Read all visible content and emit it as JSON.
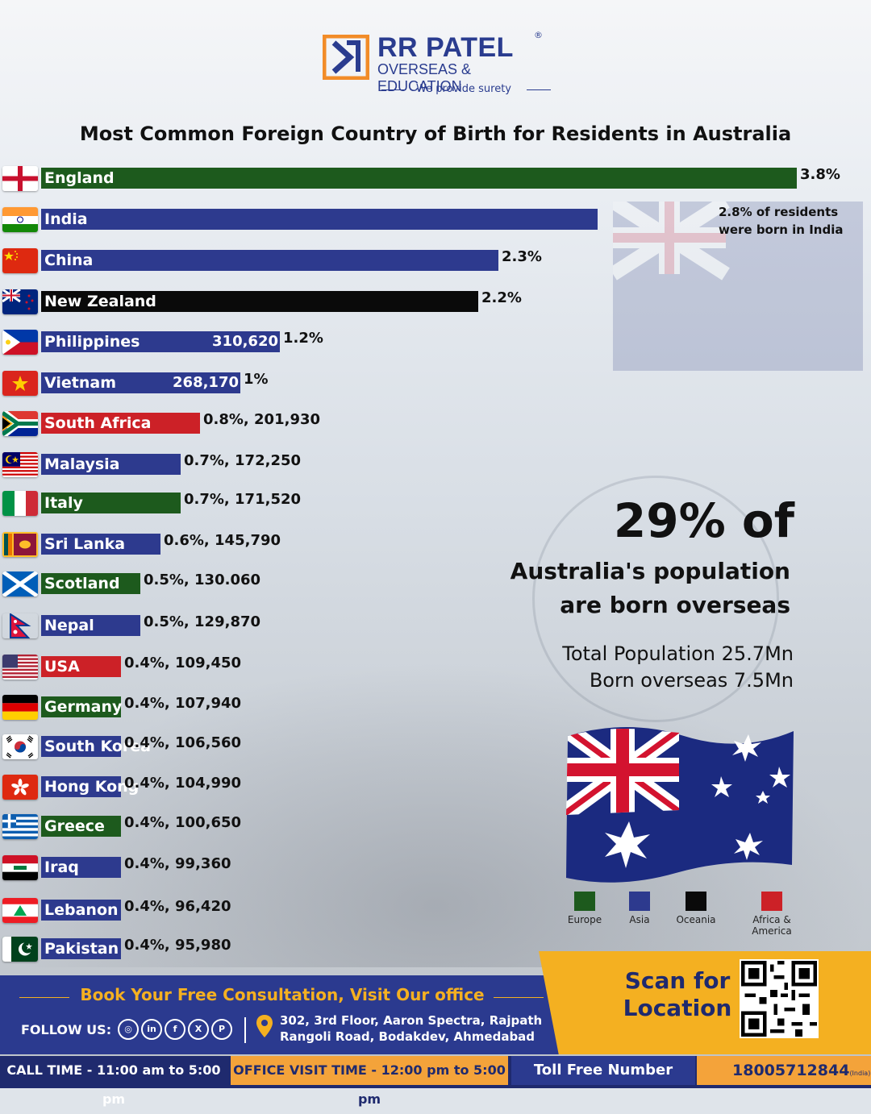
{
  "brand": {
    "name": "RR PATEL",
    "reg": "®",
    "subtitle": "OVERSEAS & EDUCATION",
    "tagline": "We provide surety"
  },
  "chart_data": {
    "type": "bar",
    "orientation": "horizontal",
    "title": "Most Common Foreign Country of Birth for Residents in Australia",
    "xlabel": "",
    "ylabel": "",
    "unit": "% of residents",
    "xlim": [
      0,
      3.8
    ],
    "categories": [
      "England",
      "India",
      "China",
      "New Zealand",
      "Philippines",
      "Vietnam",
      "South Africa",
      "Malaysia",
      "Italy",
      "Sri Lanka",
      "Scotland",
      "Nepal",
      "USA",
      "Germany",
      "South Korea",
      "Hong Kong",
      "Greece",
      "Iraq",
      "Lebanon",
      "Pakistan"
    ],
    "values": [
      3.8,
      2.8,
      2.3,
      2.2,
      1.2,
      1.0,
      0.8,
      0.7,
      0.7,
      0.6,
      0.5,
      0.5,
      0.4,
      0.4,
      0.4,
      0.4,
      0.4,
      0.4,
      0.4,
      0.4
    ],
    "regions": [
      "Europe",
      "Asia",
      "Asia",
      "Oceania",
      "Asia",
      "Asia",
      "Africa & America",
      "Asia",
      "Europe",
      "Asia",
      "Europe",
      "Asia",
      "Africa & America",
      "Europe",
      "Asia",
      "Asia",
      "Europe",
      "Asia",
      "Asia",
      "Asia"
    ],
    "value_labels": [
      "3.8%",
      "",
      "2.3%",
      "2.2%",
      "1.2%",
      "1%",
      "0.8%, 201,930",
      "0.7%, 172,250",
      "0.7%, 171,520",
      "0.6%, 145,790",
      "0.5%, 130.060",
      "0.5%, 129,870",
      "0.4%, 109,450",
      "0.4%, 107,940",
      "0.4%, 106,560",
      "0.4%, 104,990",
      "0.4%, 100,650",
      "0.4%, 99,360",
      "0.4%, 96,420",
      "0.4%, 95,980"
    ],
    "inside_labels": [
      "",
      "",
      "",
      "",
      "310,620",
      "268,170",
      "",
      "",
      "",
      "",
      "",
      "",
      "",
      "",
      "",
      "",
      "",
      "",
      "",
      ""
    ],
    "annotation": "2.8% of residents were born in India",
    "region_colors": {
      "Europe": "#1d5a1d",
      "Asia": "#2d3a8e",
      "Oceania": "#0a0a0a",
      "Africa & America": "#cc2127"
    },
    "legend": [
      "Europe",
      "Asia",
      "Oceania",
      "Africa & America"
    ],
    "legend_placement": "bottom-right",
    "grid": false
  },
  "stats": {
    "headline": "29% of",
    "line1": "Australia's population",
    "line2": "are born overseas",
    "total": "Total Population 25.7Mn",
    "overseas": "Born overseas 7.5Mn"
  },
  "footer": {
    "book": "Book Your Free Consultation, Visit Our office",
    "follow": "FOLLOW US:",
    "social": [
      "instagram-icon",
      "linkedin-icon",
      "facebook-icon",
      "x-icon",
      "pinterest-icon"
    ],
    "address1": "302, 3rd Floor, Aaron Spectra, Rajpath",
    "address2": "Rangoli Road, Bodakdev, Ahmedabad",
    "scan_line1": "Scan for",
    "scan_line2": "Location",
    "call_time": "CALL TIME - 11:00 am to 5:00 pm",
    "office_time": "OFFICE VISIT TIME - 12:00 pm to 5:00 pm",
    "toll_label": "Toll Free Number",
    "toll_number": "18005712844",
    "toll_suffix": "(India)"
  }
}
